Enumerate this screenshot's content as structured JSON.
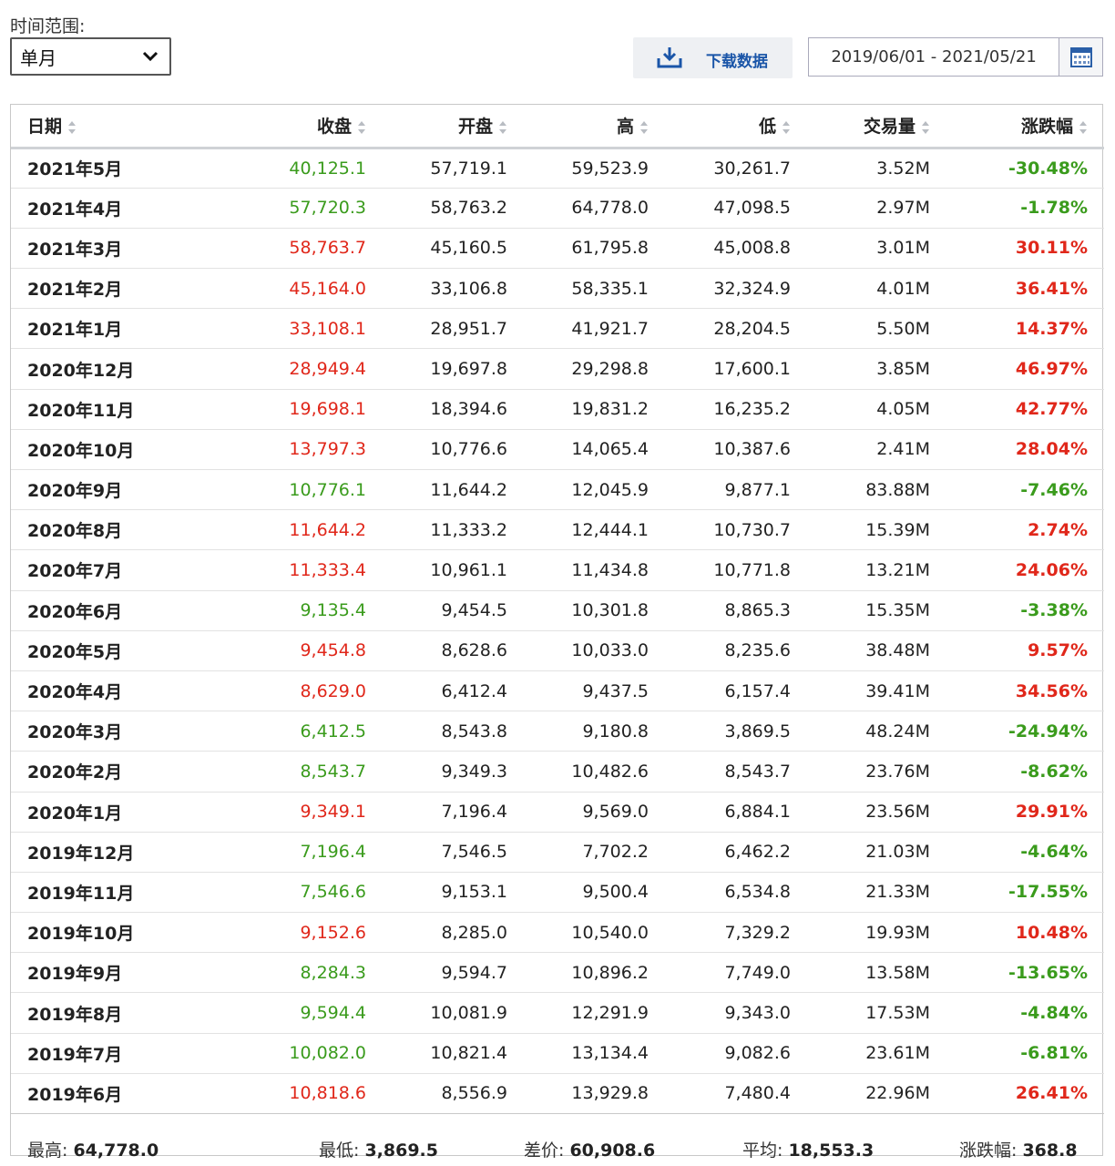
{
  "filter": {
    "label": "时间范围:",
    "selected": "单月"
  },
  "download": {
    "label": "下载数据"
  },
  "date_range": {
    "value": "2019/06/01 - 2021/05/21"
  },
  "headers": [
    "日期",
    "收盘",
    "开盘",
    "高",
    "低",
    "交易量",
    "涨跌幅"
  ],
  "rows": [
    {
      "date": "2021年5月",
      "close": "40,125.1",
      "open": "57,719.1",
      "high": "59,523.9",
      "low": "30,261.7",
      "vol": "3.52M",
      "chg": "-30.48%",
      "dir": "down"
    },
    {
      "date": "2021年4月",
      "close": "57,720.3",
      "open": "58,763.2",
      "high": "64,778.0",
      "low": "47,098.5",
      "vol": "2.97M",
      "chg": "-1.78%",
      "dir": "down"
    },
    {
      "date": "2021年3月",
      "close": "58,763.7",
      "open": "45,160.5",
      "high": "61,795.8",
      "low": "45,008.8",
      "vol": "3.01M",
      "chg": "30.11%",
      "dir": "up"
    },
    {
      "date": "2021年2月",
      "close": "45,164.0",
      "open": "33,106.8",
      "high": "58,335.1",
      "low": "32,324.9",
      "vol": "4.01M",
      "chg": "36.41%",
      "dir": "up"
    },
    {
      "date": "2021年1月",
      "close": "33,108.1",
      "open": "28,951.7",
      "high": "41,921.7",
      "low": "28,204.5",
      "vol": "5.50M",
      "chg": "14.37%",
      "dir": "up"
    },
    {
      "date": "2020年12月",
      "close": "28,949.4",
      "open": "19,697.8",
      "high": "29,298.8",
      "low": "17,600.1",
      "vol": "3.85M",
      "chg": "46.97%",
      "dir": "up"
    },
    {
      "date": "2020年11月",
      "close": "19,698.1",
      "open": "18,394.6",
      "high": "19,831.2",
      "low": "16,235.2",
      "vol": "4.05M",
      "chg": "42.77%",
      "dir": "up"
    },
    {
      "date": "2020年10月",
      "close": "13,797.3",
      "open": "10,776.6",
      "high": "14,065.4",
      "low": "10,387.6",
      "vol": "2.41M",
      "chg": "28.04%",
      "dir": "up"
    },
    {
      "date": "2020年9月",
      "close": "10,776.1",
      "open": "11,644.2",
      "high": "12,045.9",
      "low": "9,877.1",
      "vol": "83.88M",
      "chg": "-7.46%",
      "dir": "down"
    },
    {
      "date": "2020年8月",
      "close": "11,644.2",
      "open": "11,333.2",
      "high": "12,444.1",
      "low": "10,730.7",
      "vol": "15.39M",
      "chg": "2.74%",
      "dir": "up"
    },
    {
      "date": "2020年7月",
      "close": "11,333.4",
      "open": "10,961.1",
      "high": "11,434.8",
      "low": "10,771.8",
      "vol": "13.21M",
      "chg": "24.06%",
      "dir": "up"
    },
    {
      "date": "2020年6月",
      "close": "9,135.4",
      "open": "9,454.5",
      "high": "10,301.8",
      "low": "8,865.3",
      "vol": "15.35M",
      "chg": "-3.38%",
      "dir": "down"
    },
    {
      "date": "2020年5月",
      "close": "9,454.8",
      "open": "8,628.6",
      "high": "10,033.0",
      "low": "8,235.6",
      "vol": "38.48M",
      "chg": "9.57%",
      "dir": "up"
    },
    {
      "date": "2020年4月",
      "close": "8,629.0",
      "open": "6,412.4",
      "high": "9,437.5",
      "low": "6,157.4",
      "vol": "39.41M",
      "chg": "34.56%",
      "dir": "up"
    },
    {
      "date": "2020年3月",
      "close": "6,412.5",
      "open": "8,543.8",
      "high": "9,180.8",
      "low": "3,869.5",
      "vol": "48.24M",
      "chg": "-24.94%",
      "dir": "down"
    },
    {
      "date": "2020年2月",
      "close": "8,543.7",
      "open": "9,349.3",
      "high": "10,482.6",
      "low": "8,543.7",
      "vol": "23.76M",
      "chg": "-8.62%",
      "dir": "down"
    },
    {
      "date": "2020年1月",
      "close": "9,349.1",
      "open": "7,196.4",
      "high": "9,569.0",
      "low": "6,884.1",
      "vol": "23.56M",
      "chg": "29.91%",
      "dir": "up"
    },
    {
      "date": "2019年12月",
      "close": "7,196.4",
      "open": "7,546.5",
      "high": "7,702.2",
      "low": "6,462.2",
      "vol": "21.03M",
      "chg": "-4.64%",
      "dir": "down"
    },
    {
      "date": "2019年11月",
      "close": "7,546.6",
      "open": "9,153.1",
      "high": "9,500.4",
      "low": "6,534.8",
      "vol": "21.33M",
      "chg": "-17.55%",
      "dir": "down"
    },
    {
      "date": "2019年10月",
      "close": "9,152.6",
      "open": "8,285.0",
      "high": "10,540.0",
      "low": "7,329.2",
      "vol": "19.93M",
      "chg": "10.48%",
      "dir": "up"
    },
    {
      "date": "2019年9月",
      "close": "8,284.3",
      "open": "9,594.7",
      "high": "10,896.2",
      "low": "7,749.0",
      "vol": "13.58M",
      "chg": "-13.65%",
      "dir": "down"
    },
    {
      "date": "2019年8月",
      "close": "9,594.4",
      "open": "10,081.9",
      "high": "12,291.9",
      "low": "9,343.0",
      "vol": "17.53M",
      "chg": "-4.84%",
      "dir": "down"
    },
    {
      "date": "2019年7月",
      "close": "10,082.0",
      "open": "10,821.4",
      "high": "13,134.4",
      "low": "9,082.6",
      "vol": "23.61M",
      "chg": "-6.81%",
      "dir": "down"
    },
    {
      "date": "2019年6月",
      "close": "10,818.6",
      "open": "8,556.9",
      "high": "13,929.8",
      "low": "7,480.4",
      "vol": "22.96M",
      "chg": "26.41%",
      "dir": "up"
    }
  ],
  "summary": {
    "high_label": "最高:",
    "high_value": "64,778.0",
    "low_label": "最低:",
    "low_value": "3,869.5",
    "diff_label": "差价:",
    "diff_value": "60,908.6",
    "avg_label": "平均:",
    "avg_value": "18,553.3",
    "chg_label": "涨跌幅:",
    "chg_value": "368.8"
  },
  "colors": {
    "up": "#e0271a",
    "down": "#3a9b1c",
    "link": "#1a55a8"
  }
}
